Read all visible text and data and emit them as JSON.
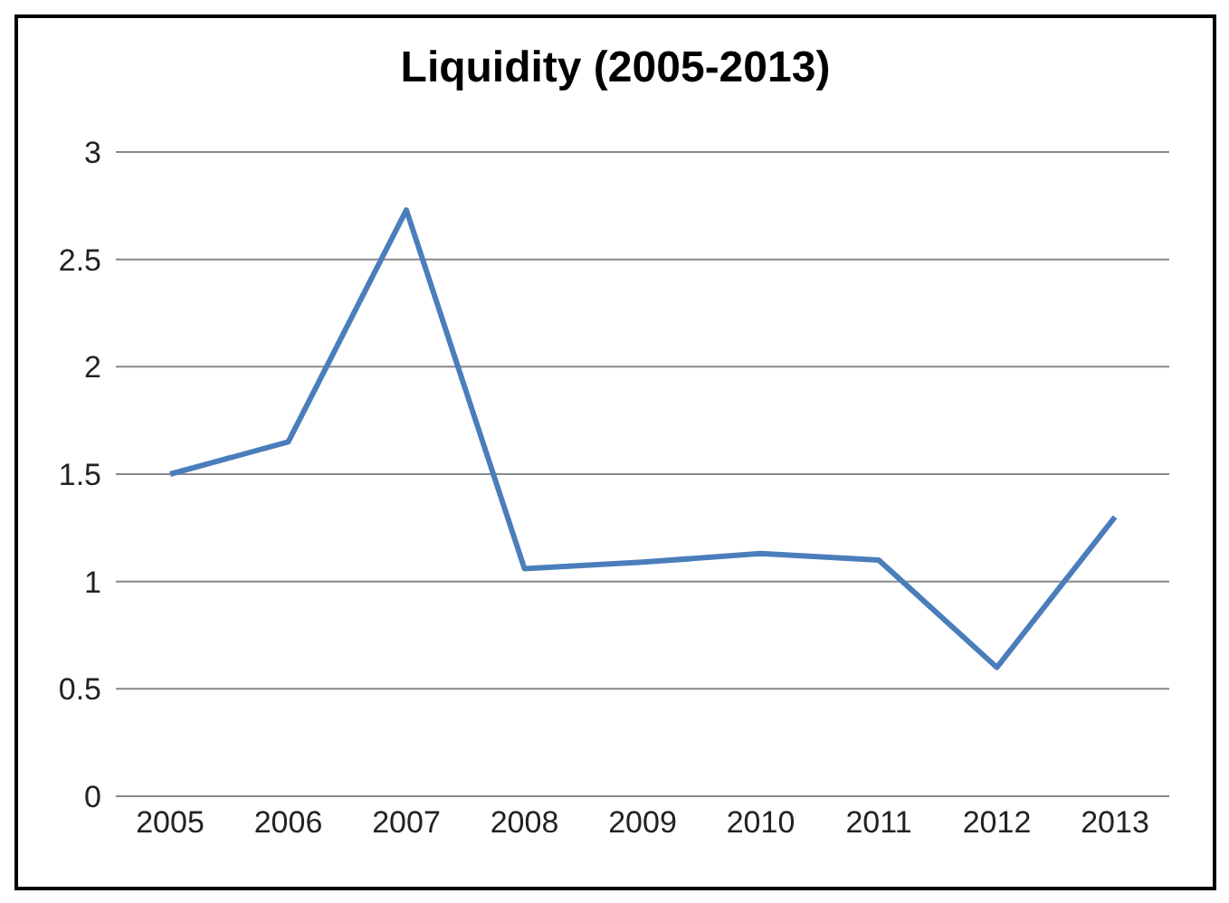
{
  "chart_data": {
    "type": "line",
    "title": "Liquidity (2005-2013)",
    "categories": [
      "2005",
      "2006",
      "2007",
      "2008",
      "2009",
      "2010",
      "2011",
      "2012",
      "2013"
    ],
    "series": [
      {
        "color": "#4a7ebb",
        "values": [
          1.5,
          1.65,
          2.73,
          1.06,
          1.09,
          1.13,
          1.1,
          0.6,
          1.3
        ]
      }
    ],
    "ylim": [
      0,
      3
    ],
    "yticks": [
      0,
      0.5,
      1,
      1.5,
      2,
      2.5,
      3
    ],
    "grid": "y",
    "marker": "none",
    "line_style": "solid"
  }
}
